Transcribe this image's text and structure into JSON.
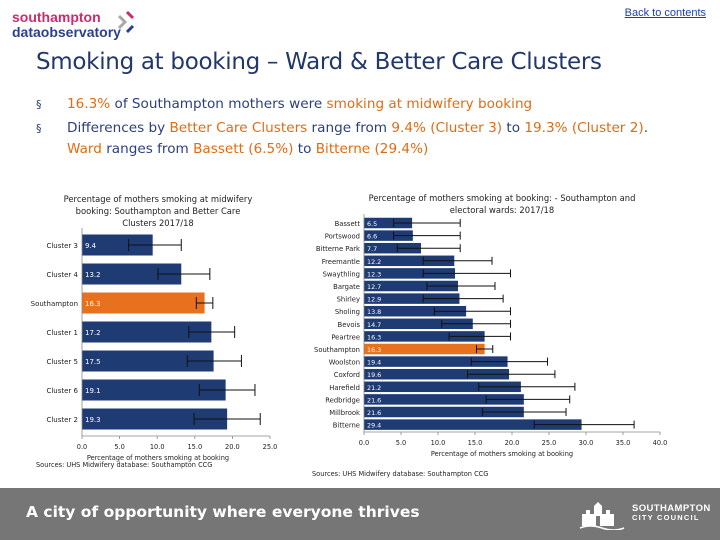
{
  "header": {
    "logo_line1": "southampton",
    "logo_line2": "dataobservatory",
    "back_link": "Back to contents"
  },
  "title": "Smoking at booking – Ward & Better Care Clusters",
  "bullets": [
    {
      "marker": "§",
      "parts": [
        {
          "text": "16.3%",
          "highlight": true
        },
        {
          "text": " of Southampton mothers were ",
          "highlight": false
        },
        {
          "text": "smoking at midwifery booking",
          "highlight": true
        }
      ]
    },
    {
      "marker": "§",
      "parts": [
        {
          "text": "Differences by ",
          "highlight": false
        },
        {
          "text": "Better Care Clusters",
          "highlight": true
        },
        {
          "text": " range from ",
          "highlight": false
        },
        {
          "text": "9.4% (Cluster 3)",
          "highlight": true
        },
        {
          "text": " to ",
          "highlight": false
        },
        {
          "text": "19.3% (Cluster 2)",
          "highlight": true
        },
        {
          "text": ". ",
          "highlight": false
        },
        {
          "text": "Ward",
          "highlight": true
        },
        {
          "text": " ranges from ",
          "highlight": false
        },
        {
          "text": "Bassett (6.5%)",
          "highlight": true
        },
        {
          "text": " to ",
          "highlight": false
        },
        {
          "text": "Bitterne (29.4%)",
          "highlight": true
        }
      ]
    }
  ],
  "colors": {
    "bar": "#1f3b73",
    "highlight_bar": "#e8711e",
    "title": "#22386b",
    "accent_text": "#e06c12",
    "footer": "#767676"
  },
  "chart_data": [
    {
      "type": "bar",
      "orientation": "horizontal",
      "title": "Percentage of mothers smoking at midwifery booking: Southampton and Better Care Clusters 2017/18",
      "title_lines": [
        "Percentage of mothers smoking at midwifery",
        "booking: Southampton and Better Care",
        "Clusters 2017/18"
      ],
      "categories": [
        "Cluster 3",
        "Cluster 4",
        "Southampton",
        "Cluster 1",
        "Cluster 5",
        "Cluster 6",
        "Cluster 2"
      ],
      "values": [
        9.4,
        13.2,
        16.3,
        17.2,
        17.5,
        19.1,
        19.3
      ],
      "value_labels": [
        "9.4",
        "13.2",
        "16.3",
        "17.2",
        "17.5",
        "19.1",
        "19.3"
      ],
      "error_low": [
        6.2,
        10.1,
        15.2,
        14.2,
        14.0,
        15.6,
        14.9
      ],
      "error_high": [
        13.2,
        17.0,
        17.4,
        20.3,
        21.2,
        23.0,
        23.7
      ],
      "highlight": "Southampton",
      "xlim": [
        0,
        25
      ],
      "xticks": [
        "0.0",
        "5.0",
        "10.0",
        "15.0",
        "20.0",
        "25.0"
      ],
      "xlabel": "Percentage of mothers smoking at booking",
      "source": "Sources: UHS Midwifery database: Southampton CCG",
      "grid": false
    },
    {
      "type": "bar",
      "orientation": "horizontal",
      "title": "Percentage of mothers smoking at booking: - Southampton and electoral wards: 2017/18",
      "title_lines": [
        "Percentage of mothers smoking at booking: - Southampton and",
        "electoral wards: 2017/18"
      ],
      "categories": [
        "Bassett",
        "Portswood",
        "Bitterne Park",
        "Freemantle",
        "Swaythling",
        "Bargate",
        "Shirley",
        "Sholing",
        "Bevois",
        "Peartree",
        "Southampton",
        "Woolston",
        "Coxford",
        "Harefield",
        "Redbridge",
        "Millbrook",
        "Bitterne"
      ],
      "values": [
        6.5,
        6.6,
        7.7,
        12.2,
        12.3,
        12.7,
        12.9,
        13.8,
        14.7,
        16.3,
        16.3,
        19.4,
        19.6,
        21.2,
        21.6,
        21.6,
        29.4
      ],
      "value_labels": [
        "6.5",
        "6.6",
        "7.7",
        "12.2",
        "12.3",
        "12.7",
        "12.9",
        "13.8",
        "14.7",
        "16.3",
        "16.3",
        "19.4",
        "19.6",
        "21.2",
        "21.6",
        "21.6",
        "29.4"
      ],
      "error_low": [
        4.0,
        4.0,
        4.5,
        8.0,
        8.0,
        8.5,
        8.0,
        9.5,
        10.5,
        11.5,
        15.2,
        14.5,
        14.0,
        15.5,
        16.5,
        16.0,
        23.0
      ],
      "error_high": [
        13.0,
        13.0,
        13.0,
        17.3,
        19.8,
        17.7,
        18.8,
        19.8,
        19.8,
        19.8,
        17.4,
        24.8,
        25.8,
        28.5,
        27.8,
        27.3,
        36.5
      ],
      "highlight": "Southampton",
      "xlim": [
        0,
        40
      ],
      "xticks": [
        "0.0",
        "5.0",
        "10.0",
        "15.0",
        "20.0",
        "25.0",
        "30.0",
        "35.0",
        "40.0"
      ],
      "xlabel": "Percentage of mothers smoking at booking",
      "source": "Sources: UHS Midwifery database: Southampton CCG",
      "grid": false
    }
  ],
  "footer": {
    "tagline": "A city of opportunity where everyone thrives",
    "logo_line1": "SOUTHAMPTON",
    "logo_line2": "CITY COUNCIL"
  }
}
